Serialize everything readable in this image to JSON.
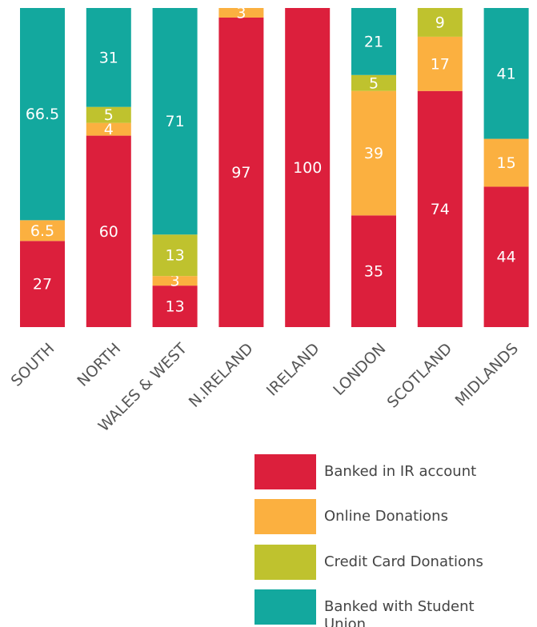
{
  "chart_data": {
    "type": "stacked_bar",
    "categories": [
      "SOUTH",
      "NORTH",
      "WALES & WEST",
      "N.IRELAND",
      "IRELAND",
      "LONDON",
      "SCOTLAND",
      "MIDLANDS"
    ],
    "ylim": [
      0,
      100
    ],
    "series": [
      {
        "name": "Banked in IR account",
        "color": "#dc1f3c",
        "values": [
          27,
          60,
          13,
          97,
          100,
          35,
          74,
          44
        ]
      },
      {
        "name": "Online Donations",
        "color": "#fbb040",
        "values": [
          6.5,
          4,
          3,
          3,
          0,
          39,
          17,
          15
        ]
      },
      {
        "name": "Credit Card Donations",
        "color": "#bfc22e",
        "values": [
          0,
          5,
          13,
          0,
          0,
          5,
          9,
          0
        ]
      },
      {
        "name": "Banked with Student Union",
        "color": "#13a89e",
        "values": [
          66.5,
          31,
          71,
          0,
          0,
          21,
          0,
          41
        ]
      }
    ]
  }
}
